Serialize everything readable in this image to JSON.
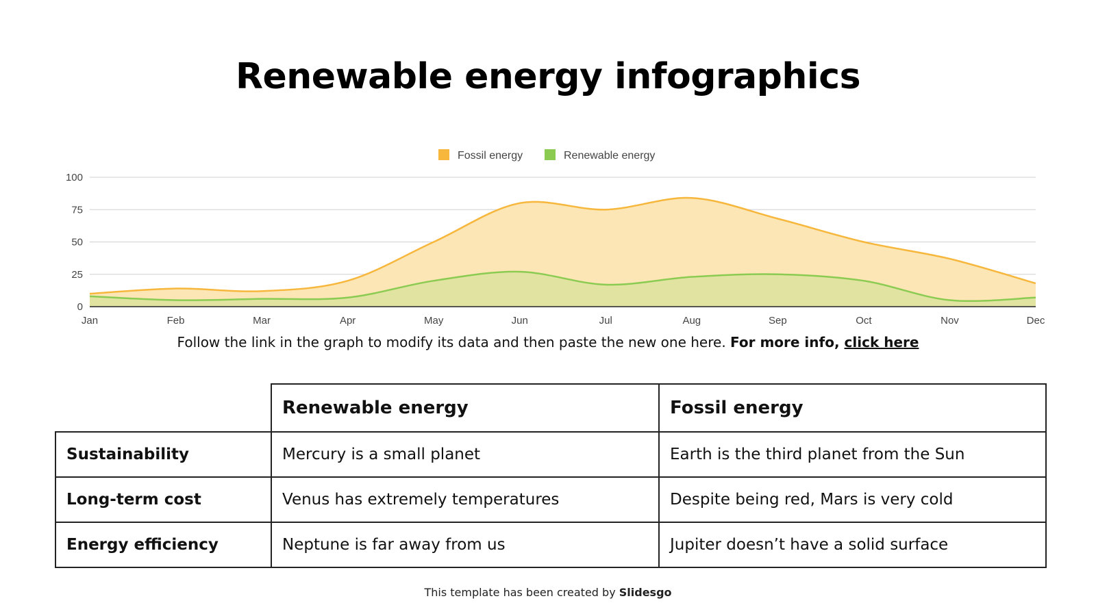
{
  "title": "Renewable energy infographics",
  "chart_data": {
    "type": "area",
    "categories": [
      "Jan",
      "Feb",
      "Mar",
      "Apr",
      "May",
      "Jun",
      "Jul",
      "Aug",
      "Sep",
      "Oct",
      "Nov",
      "Dec"
    ],
    "series": [
      {
        "name": "Fossil energy",
        "values": [
          10,
          14,
          12,
          20,
          50,
          80,
          75,
          84,
          68,
          50,
          37,
          18
        ],
        "color": "#F6B73C",
        "fill": "#FDE6B5"
      },
      {
        "name": "Renewable energy",
        "values": [
          8,
          5,
          6,
          7,
          20,
          27,
          17,
          23,
          25,
          20,
          5,
          7
        ],
        "color": "#8BCB52",
        "fill": "#DCE29D"
      }
    ],
    "yticks": [
      0,
      25,
      50,
      75,
      100
    ],
    "ylim": [
      0,
      100
    ],
    "grid": true,
    "legend": "top-center",
    "xlabel": "",
    "ylabel": ""
  },
  "caption": {
    "text": "Follow the link in the graph to modify its data and then paste the new one here. ",
    "bold": "For more info, ",
    "link": "click here"
  },
  "table": {
    "headers": [
      "Renewable energy",
      "Fossil energy"
    ],
    "rows": [
      {
        "label": "Sustainability",
        "renewable": "Mercury is a small planet",
        "fossil": "Earth is the third planet from the Sun"
      },
      {
        "label": "Long-term cost",
        "renewable": "Venus has extremely temperatures",
        "fossil": "Despite being red, Mars is very cold"
      },
      {
        "label": "Energy efficiency",
        "renewable": "Neptune is far away from us",
        "fossil": "Jupiter doesn’t have a solid surface"
      }
    ]
  },
  "footer": {
    "text": "This template has been created by ",
    "brand": "Slidesgo"
  }
}
